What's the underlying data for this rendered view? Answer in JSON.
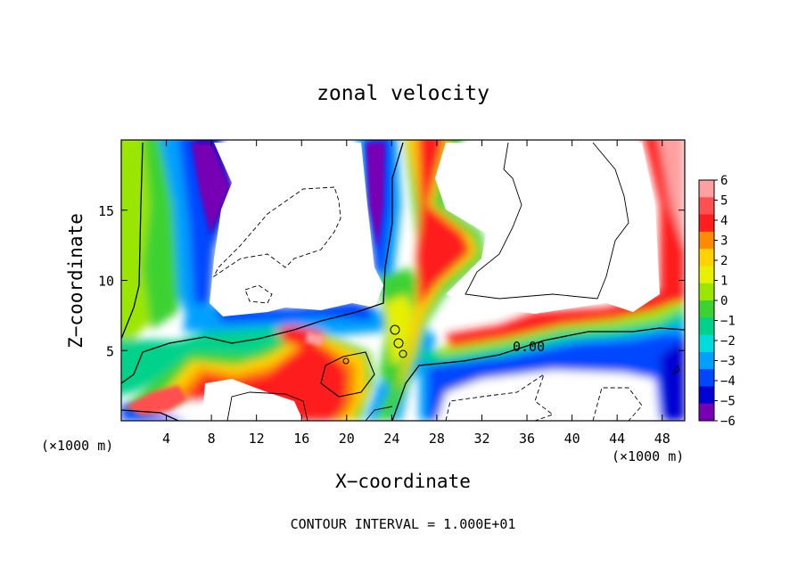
{
  "chart_data": {
    "type": "heatmap",
    "title": "zonal velocity",
    "xlabel": "X−coordinate",
    "ylabel": "Z−coordinate",
    "x_unit_left": "(×1000 m)",
    "x_unit_right": "(×1000 m)",
    "footer": "CONTOUR INTERVAL = 1.000E+01",
    "contour_label": "0.00",
    "xlim": [
      0,
      50
    ],
    "ylim": [
      0,
      20
    ],
    "x_ticks": [
      4,
      8,
      12,
      16,
      20,
      24,
      28,
      32,
      36,
      40,
      44,
      48
    ],
    "y_ticks": [
      5,
      10,
      15
    ],
    "x_tick_labels": [
      "4",
      "8",
      "12",
      "16",
      "20",
      "24",
      "28",
      "32",
      "36",
      "40",
      "44",
      "48"
    ],
    "y_tick_labels": [
      "5",
      "10",
      "15"
    ],
    "colorbar": {
      "min": -6,
      "max": 6,
      "labels": [
        "6",
        "5",
        "4",
        "3",
        "2",
        "1",
        "0",
        "−1",
        "−2",
        "−3",
        "−4",
        "−5",
        "−6"
      ],
      "colors": [
        "#ffa0a0",
        "#ff5050",
        "#ff1e1e",
        "#ff8c00",
        "#ffd200",
        "#e6f000",
        "#9be600",
        "#3cd232",
        "#00d28c",
        "#00dcdc",
        "#00a0ff",
        "#0046ff",
        "#0000d2",
        "#7800b4"
      ]
    }
  }
}
